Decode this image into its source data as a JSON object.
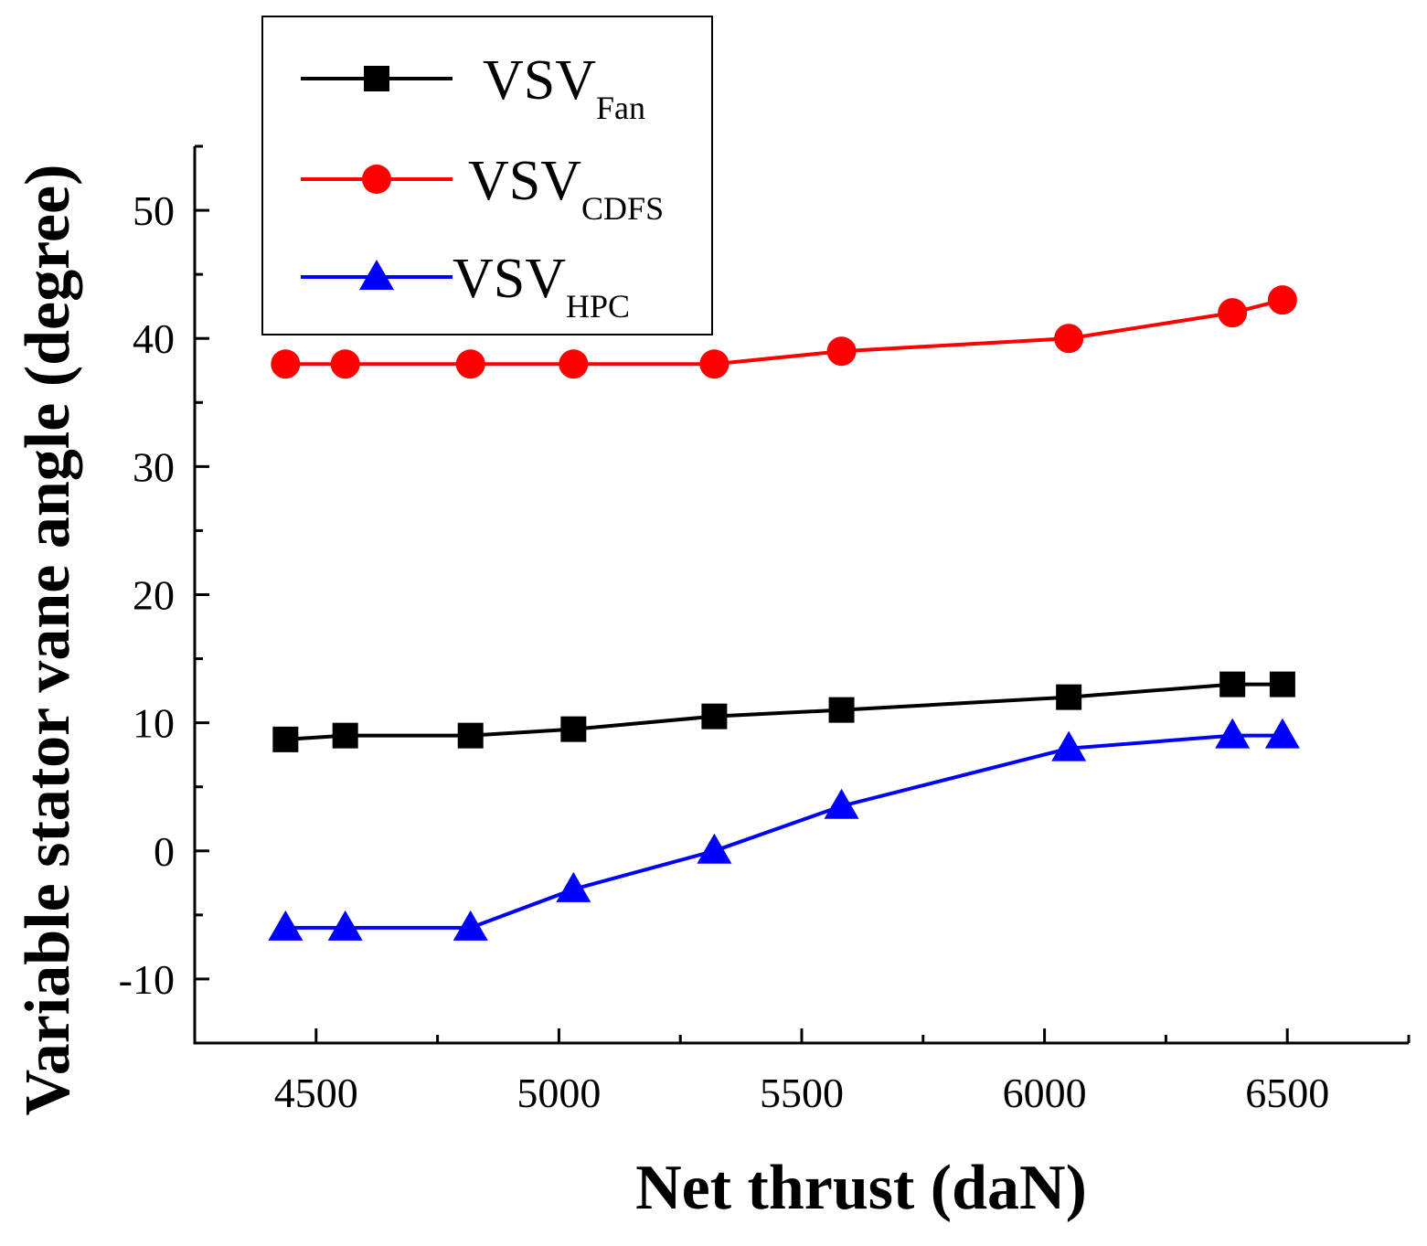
{
  "chart_data": {
    "type": "line",
    "xlabel": "Net thrust (daN)",
    "ylabel": "Variable stator vane angle (degree)",
    "xlim": [
      4250,
      6750
    ],
    "ylim": [
      -15,
      55
    ],
    "xticks": [
      4500,
      5000,
      5500,
      6000,
      6500
    ],
    "yticks": [
      -10,
      0,
      10,
      20,
      30,
      40,
      50
    ],
    "x_minor_step": 250,
    "y_minor_step": 5,
    "grid": false,
    "legend_position": "top-left",
    "series": [
      {
        "name": "VSV",
        "subscript": "Fan",
        "color": "#000000",
        "marker": "square",
        "x": [
          4437,
          4560,
          4818,
          5030,
          5320,
          5582,
          6050,
          6387,
          6490
        ],
        "y": [
          8.7,
          9.0,
          9.0,
          9.5,
          10.5,
          11.0,
          12.0,
          13.0,
          13.0
        ]
      },
      {
        "name": "VSV",
        "subscript": "CDFS",
        "color": "#ff0000",
        "marker": "circle",
        "x": [
          4437,
          4560,
          4818,
          5030,
          5320,
          5582,
          6050,
          6387,
          6490
        ],
        "y": [
          38.0,
          38.0,
          38.0,
          38.0,
          38.0,
          39.0,
          40.0,
          42.0,
          43.0
        ]
      },
      {
        "name": "VSV",
        "subscript": "HPC",
        "color": "#0000ff",
        "marker": "triangle",
        "x": [
          4437,
          4560,
          4818,
          5030,
          5320,
          5582,
          6050,
          6387,
          6490
        ],
        "y": [
          -6.0,
          -6.0,
          -6.0,
          -3.0,
          0.0,
          3.5,
          8.0,
          9.0,
          9.0
        ]
      }
    ]
  }
}
